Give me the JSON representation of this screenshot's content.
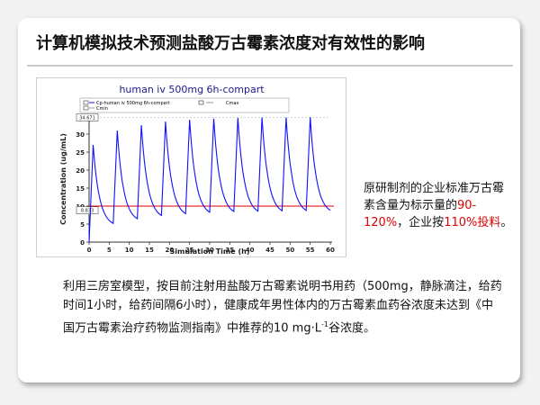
{
  "slide": {
    "title": "计算机模拟技术预测盐酸万古霉素浓度对有效性的影响"
  },
  "side_note": {
    "part1": "原研制剂的企业标准万古霉素含量为标示量的",
    "range": "90-120%",
    "part2": "，企业按",
    "pct": "110%投料",
    "part3": "。"
  },
  "body_text": {
    "part1": "利用三房室模型，按目前注射用盐酸万古霉素说明书用药（500mg，静脉滴注，给药时间1小时，给药间隔6小时），健康成年男性体内的万古霉素血药谷浓度未达到《中国万古霉素治疗药物监测指南》中推荐的10 mg·L",
    "sup": "-1",
    "part2": "谷浓度。"
  },
  "chart_data": {
    "type": "line",
    "title": "human iv 500mg 6h-compart",
    "xlabel": "Simulation Time (h)",
    "ylabel": "Concentration (ug/mL)",
    "xlim": [
      0,
      60
    ],
    "ylim": [
      0,
      35
    ],
    "x_ticks": [
      0,
      5,
      10,
      15,
      20,
      25,
      30,
      35,
      40,
      45,
      50,
      55,
      60
    ],
    "y_ticks": [
      0,
      5,
      10,
      15,
      20,
      25,
      30
    ],
    "legend": {
      "items": [
        "Cp-human iv 500mg 6h-compart",
        "Cmax",
        "Cmin"
      ],
      "placement": "top"
    },
    "cmax_label": "34.671",
    "cmin_label": "8.833",
    "reference_line": {
      "y": 10,
      "color": "#e00000"
    },
    "series": [
      {
        "color": "#1010ff",
        "peaks_x": [
          1,
          7,
          13,
          19,
          25,
          31,
          37,
          43,
          49,
          55
        ],
        "peaks_y": [
          27,
          31,
          32.5,
          33.5,
          34,
          34.3,
          34.5,
          34.6,
          34.6,
          34.67
        ],
        "troughs_y": [
          5.2,
          6.5,
          7.4,
          7.9,
          8.3,
          8.5,
          8.6,
          8.7,
          8.8,
          8.83
        ]
      }
    ]
  },
  "colors": {
    "accent_red": "#e00000",
    "curve_blue": "#1010ff",
    "title_blue": "#1a1a8c"
  }
}
